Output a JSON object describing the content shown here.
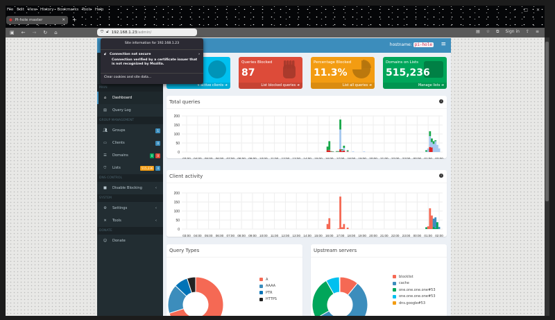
{
  "browser": {
    "menu": [
      "File",
      "Edit",
      "View",
      "History",
      "Bookmarks",
      "Tools",
      "Help"
    ],
    "tab_title": "Pi-hole master",
    "url_host": "192.168.1.23",
    "url_path": "/admin/",
    "sign_in": "Sign in"
  },
  "popup": {
    "title": "Site information for 192.168.1.23",
    "status": "Connection not secure",
    "description": "Connection verified by a certificate issuer that is not recognized by Mozilla.",
    "clear": "Clear cookies and site data..."
  },
  "header": {
    "hostname_label": "hostname:",
    "hostname": "pi-hole"
  },
  "sidebar": {
    "sections": [
      "MAIN",
      "GROUP MANAGEMENT",
      "DNS CONTROL",
      "SYSTEM",
      "DONATE"
    ],
    "items": [
      {
        "label": "Dashboard",
        "icon": "home-icon"
      },
      {
        "label": "Query Log",
        "icon": "file-icon"
      },
      {
        "label": "Groups",
        "icon": "users-icon",
        "badges": [
          "1"
        ]
      },
      {
        "label": "Clients",
        "icon": "laptop-icon",
        "badges": [
          "0"
        ]
      },
      {
        "label": "Domains",
        "icon": "list-icon",
        "badges": [
          "0",
          "0"
        ]
      },
      {
        "label": "Lists",
        "icon": "shield-icon",
        "badges": [
          "515,236",
          "4"
        ]
      },
      {
        "label": "Disable Blocking",
        "icon": "stop-icon"
      },
      {
        "label": "Settings",
        "icon": "gears-icon"
      },
      {
        "label": "Tools",
        "icon": "tools-icon"
      },
      {
        "label": "Donate",
        "icon": "donate-icon"
      }
    ]
  },
  "cards": [
    {
      "title": "",
      "value": "",
      "footer": "4 active clients",
      "color": "#00c0ef"
    },
    {
      "title": "Queries Blocked",
      "value": "87",
      "footer": "List blocked queries",
      "color": "#dd4b39"
    },
    {
      "title": "Percentage Blocked",
      "value": "11.3%",
      "footer": "List all queries",
      "color": "#f39c12"
    },
    {
      "title": "Domains on Lists",
      "value": "515,236",
      "footer": "Manage lists",
      "color": "#00a65a"
    }
  ],
  "chart_data": [
    {
      "type": "bar",
      "title": "Total queries",
      "stacked": true,
      "ylim": [
        0,
        200
      ],
      "yticks": [
        0,
        50,
        100,
        150,
        200
      ],
      "xticks": [
        "03:00",
        "04:00",
        "05:00",
        "06:00",
        "07:00",
        "08:00",
        "09:00",
        "10:00",
        "11:00",
        "12:00",
        "13:00",
        "14:00",
        "15:00",
        "16:00",
        "17:00",
        "18:00",
        "19:00",
        "20:00",
        "21:00",
        "22:00",
        "23:00",
        "00:00",
        "01:00",
        "02:00"
      ],
      "series_colors": [
        "#dd2020",
        "#a6c8ef",
        "#18a84a"
      ],
      "bars": [
        [
          "15:50",
          10,
          0,
          20
        ],
        [
          "16:00",
          10,
          2,
          48
        ],
        [
          "16:10",
          2,
          1,
          2
        ],
        [
          "16:20",
          1,
          1,
          2
        ],
        [
          "16:40",
          1,
          1,
          3
        ],
        [
          "16:50",
          1,
          1,
          3
        ],
        [
          "17:00",
          15,
          110,
          55
        ],
        [
          "17:10",
          5,
          5,
          5
        ],
        [
          "17:20",
          8,
          15,
          12
        ],
        [
          "17:40",
          2,
          3,
          5
        ],
        [
          "18:10",
          0,
          3,
          0
        ],
        [
          "19:10",
          0,
          3,
          0
        ],
        [
          "00:50",
          0,
          2,
          8
        ],
        [
          "01:00",
          0,
          20,
          0
        ],
        [
          "01:10",
          28,
          60,
          27
        ],
        [
          "01:20",
          25,
          30,
          20
        ],
        [
          "01:30",
          0,
          45,
          15
        ],
        [
          "01:40",
          0,
          60,
          5
        ],
        [
          "01:50",
          0,
          40,
          0
        ],
        [
          "02:00",
          0,
          20,
          0
        ]
      ]
    },
    {
      "type": "bar",
      "title": "Client activity",
      "stacked": true,
      "ylim": [
        0,
        200
      ],
      "yticks": [
        0,
        50,
        100,
        150,
        200
      ],
      "xticks": [
        "03:00",
        "04:00",
        "05:00",
        "06:00",
        "07:00",
        "08:00",
        "09:00",
        "10:00",
        "11:00",
        "12:00",
        "13:00",
        "14:00",
        "15:00",
        "16:00",
        "17:00",
        "18:00",
        "19:00",
        "20:00",
        "21:00",
        "22:00",
        "23:00",
        "00:00",
        "01:00",
        "02:00"
      ],
      "series_colors": [
        "#f56954",
        "#00a65a",
        "#3c8dbc"
      ],
      "bars": [
        [
          "15:50",
          28,
          0,
          0
        ],
        [
          "16:00",
          60,
          0,
          0
        ],
        [
          "16:50",
          3,
          0,
          0
        ],
        [
          "17:00",
          180,
          0,
          0
        ],
        [
          "17:10",
          10,
          0,
          0
        ],
        [
          "17:20",
          28,
          0,
          0
        ],
        [
          "17:40",
          8,
          0,
          0
        ],
        [
          "00:50",
          0,
          10,
          0
        ],
        [
          "01:00",
          15,
          0,
          0
        ],
        [
          "01:10",
          115,
          0,
          0
        ],
        [
          "01:20",
          75,
          0,
          0
        ],
        [
          "01:30",
          0,
          13,
          45
        ],
        [
          "01:40",
          0,
          5,
          60
        ],
        [
          "01:50",
          0,
          38,
          0
        ],
        [
          "02:00",
          0,
          0,
          12
        ]
      ]
    },
    {
      "type": "pie",
      "title": "Query Types",
      "donut": true,
      "labels": [
        "A",
        "AAAA",
        "PTR",
        "HTTPS"
      ],
      "values": [
        70,
        17,
        8,
        5
      ],
      "colors": [
        "#f56954",
        "#3c8dbc",
        "#0073b7",
        "#222222"
      ]
    },
    {
      "type": "pie",
      "title": "Upstream servers",
      "donut": true,
      "labels": [
        "blocklist",
        "cache",
        "one.one.one.one#53",
        "one.one.one.one#53",
        "dns.google#53"
      ],
      "values": [
        11,
        56,
        25,
        8,
        0.3
      ],
      "colors": [
        "#f56954",
        "#3c8dbc",
        "#00a65a",
        "#00c0ef",
        "#f39c12"
      ]
    }
  ]
}
